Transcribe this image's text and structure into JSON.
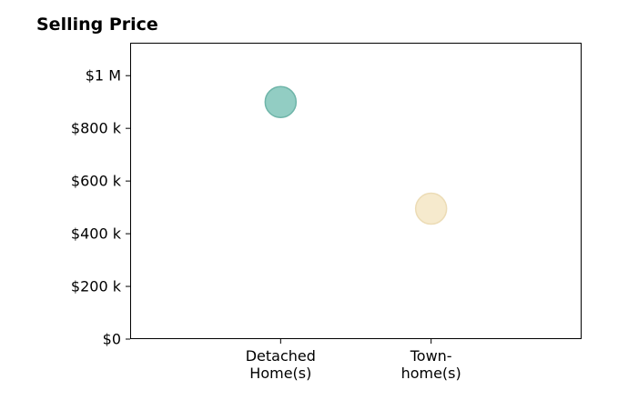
{
  "chart_data": {
    "type": "scatter",
    "title": "Selling Price",
    "xlabel": "",
    "ylabel": "",
    "categories": [
      [
        "Detached",
        "Home(s)"
      ],
      [
        "Town-",
        "home(s)"
      ]
    ],
    "values": [
      900000,
      495000
    ],
    "point_colors": [
      "#7fc4b8",
      "#f5e6c4"
    ],
    "point_edge_colors": [
      "#6fb5a9",
      "#ecdcb6"
    ],
    "point_opacity": 0.85,
    "x_positions": [
      1,
      2
    ],
    "xlim": [
      0,
      3
    ],
    "ylim": [
      0,
      1125000
    ],
    "y_ticks": [
      {
        "value": 0,
        "label": "$0"
      },
      {
        "value": 200000,
        "label": "$200 k"
      },
      {
        "value": 400000,
        "label": "$400 k"
      },
      {
        "value": 600000,
        "label": "$600 k"
      },
      {
        "value": 800000,
        "label": "$800 k"
      },
      {
        "value": 1000000,
        "label": "$1 M"
      }
    ],
    "grid": false,
    "legend": "none",
    "frame_color": "#000000",
    "background": "#ffffff"
  }
}
